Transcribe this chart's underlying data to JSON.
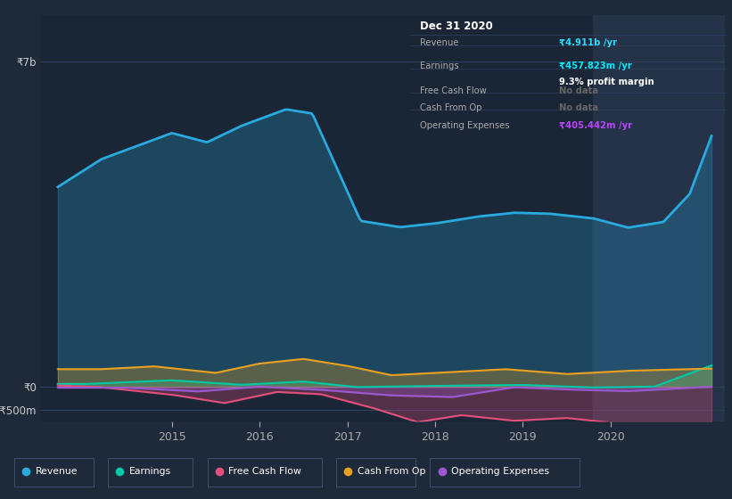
{
  "background_color": "#1e2a3a",
  "plot_bg_color": "#1a2535",
  "highlight_bg_color": "#243348",
  "info_box_color": "#0d1117",
  "ytick_labels": [
    "₹7b",
    "₹0",
    "-₹500m"
  ],
  "ytick_values": [
    7000,
    0,
    -500
  ],
  "ylim": [
    -750,
    8000
  ],
  "xlim_start": 2013.5,
  "xlim_end": 2021.3,
  "xtick_years": [
    2015,
    2016,
    2017,
    2018,
    2019,
    2020
  ],
  "revenue_color": "#29aadf",
  "earnings_color": "#00c9a7",
  "fcf_color": "#e0507a",
  "cashfromop_color": "#e8a020",
  "opex_color": "#9b59d0",
  "legend_items": [
    {
      "label": "Revenue",
      "color": "#29aadf"
    },
    {
      "label": "Earnings",
      "color": "#00c9a7"
    },
    {
      "label": "Free Cash Flow",
      "color": "#e0507a"
    },
    {
      "label": "Cash From Op",
      "color": "#e8a020"
    },
    {
      "label": "Operating Expenses",
      "color": "#9b59d0"
    }
  ]
}
